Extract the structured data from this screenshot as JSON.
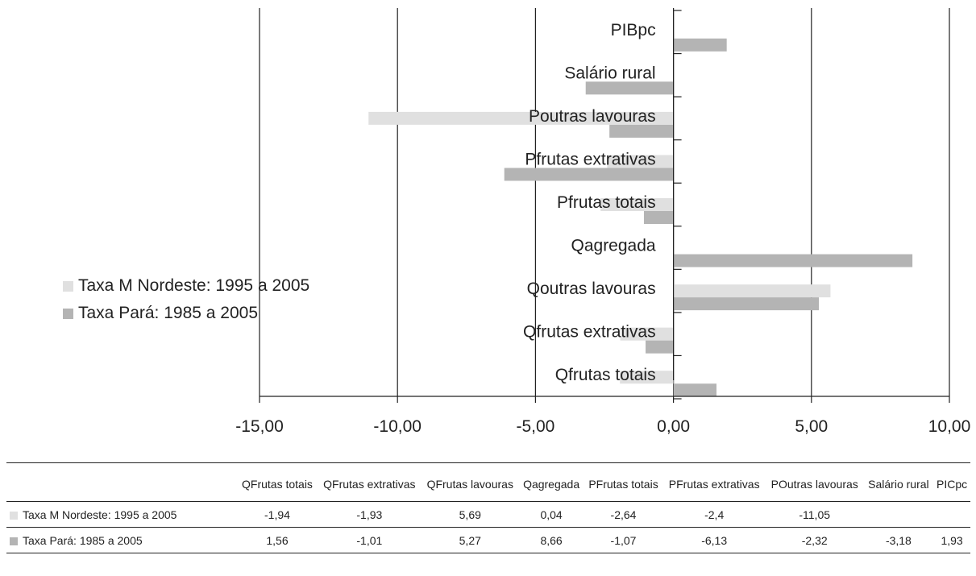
{
  "chart_data": {
    "type": "bar",
    "orientation": "horizontal",
    "categories": [
      "PIBpc",
      "Salário rural",
      "Poutras lavouras",
      "Pfrutas extrativas",
      "Pfrutas totais",
      "Qagregada",
      "Qoutras lavouras",
      "Qfrutas extrativas",
      "Qfrutas totais"
    ],
    "series": [
      {
        "name": "Taxa M Nordeste: 1995 a 2005",
        "color": "#e0e0e0",
        "values": [
          null,
          null,
          -11.05,
          -2.4,
          -2.64,
          0.04,
          5.69,
          -1.93,
          -1.94
        ]
      },
      {
        "name": "Taxa Pará: 1985 a 2005",
        "color": "#b4b4b4",
        "values": [
          1.93,
          -3.18,
          -2.32,
          -6.13,
          -1.07,
          8.66,
          5.27,
          -1.01,
          1.56
        ]
      }
    ],
    "xlim": [
      -15,
      10
    ],
    "tick_values": [
      -15,
      -10,
      -5,
      0,
      5,
      10
    ],
    "tick_labels": [
      "-15,00",
      "-10,00",
      "-5,00",
      "0,00",
      "5,00",
      "10,00"
    ],
    "title": "",
    "xlabel": "",
    "ylabel": "",
    "grid": "vertical",
    "legend": "left"
  },
  "legend_items": [
    {
      "label": "Taxa M Nordeste: 1995 a 2005",
      "color": "#e0e0e0"
    },
    {
      "label": "Taxa Pará: 1985 a 2005",
      "color": "#b4b4b4"
    }
  ],
  "table": {
    "headers": [
      "QFrutas totais",
      "QFrutas extrativas",
      "QFrutas lavouras",
      "Qagregada",
      "PFrutas totais",
      "PFrutas extrativas",
      "POutras lavouras",
      "Salário rural",
      "PICpc"
    ],
    "rows": [
      {
        "label": "Taxa M Nordeste: 1995 a 2005",
        "color": "#e0e0e0",
        "cells": [
          "-1,94",
          "-1,93",
          "5,69",
          "0,04",
          "-2,64",
          "-2,4",
          "-11,05",
          "",
          ""
        ]
      },
      {
        "label": "Taxa Pará: 1985 a 2005",
        "color": "#b4b4b4",
        "cells": [
          "1,56",
          "-1,01",
          "5,27",
          "8,66",
          "-1,07",
          "-6,13",
          "-2,32",
          "-3,18",
          "1,93"
        ]
      }
    ]
  }
}
